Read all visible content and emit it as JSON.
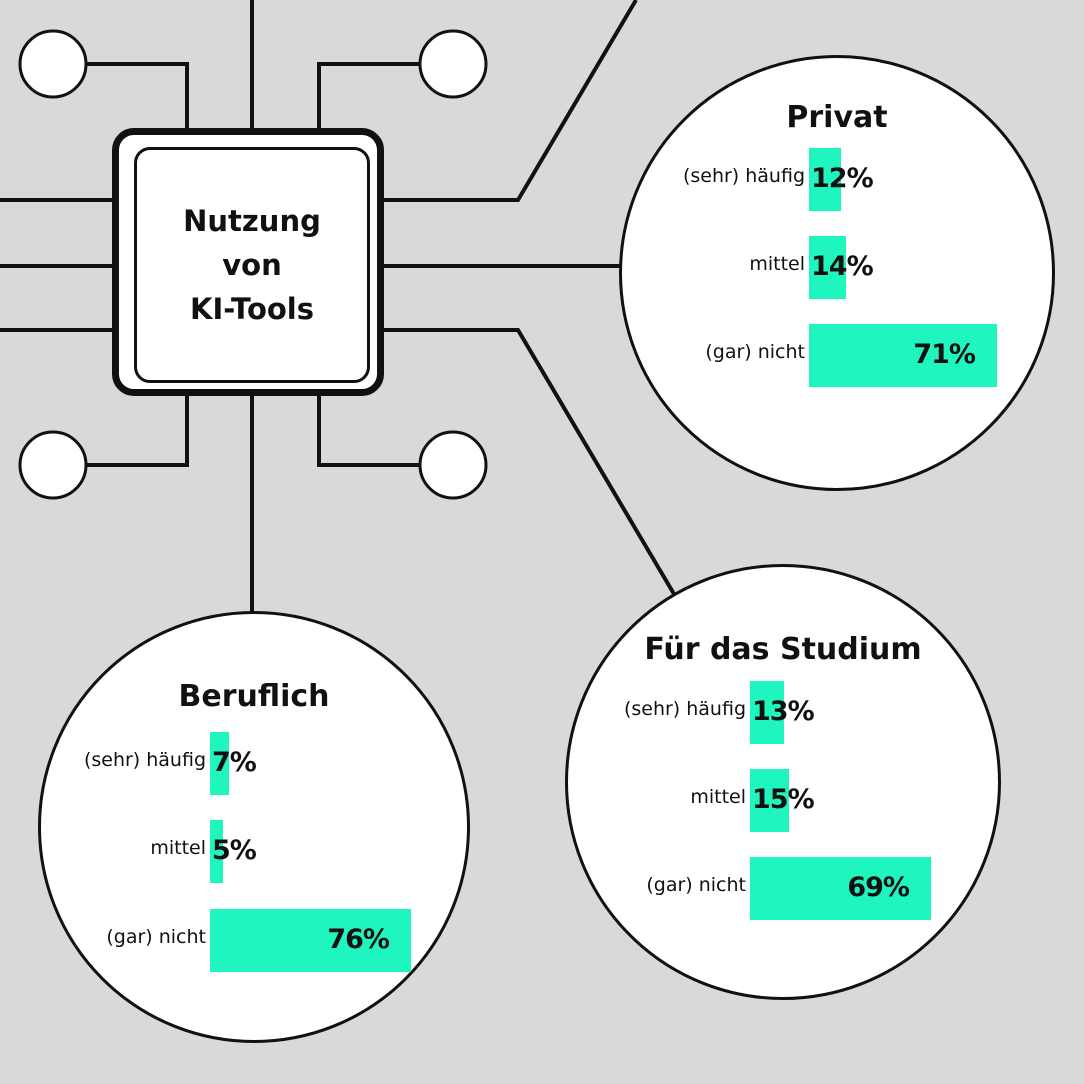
{
  "chip": {
    "line1": "Nutzung",
    "line2": "von",
    "line3": "KI-Tools"
  },
  "colors": {
    "bar": "#1ef5bf",
    "background": "#d9d9d9",
    "line": "#111111"
  },
  "chart_data": [
    {
      "type": "bar",
      "orientation": "horizontal",
      "title": "Privat",
      "categories": [
        "(sehr) häufig",
        "mittel",
        "(gar) nicht"
      ],
      "values": [
        12,
        14,
        71
      ],
      "labels": [
        "12%",
        "14%",
        "71%"
      ]
    },
    {
      "type": "bar",
      "orientation": "horizontal",
      "title": "Für das Studium",
      "categories": [
        "(sehr) häufig",
        "mittel",
        "(gar) nicht"
      ],
      "values": [
        13,
        15,
        69
      ],
      "labels": [
        "13%",
        "15%",
        "69%"
      ]
    },
    {
      "type": "bar",
      "orientation": "horizontal",
      "title": "Beruflich",
      "categories": [
        "(sehr) häufig",
        "mittel",
        "(gar) nicht"
      ],
      "values": [
        7,
        5,
        76
      ],
      "labels": [
        "7%",
        "5%",
        "76%"
      ]
    }
  ]
}
